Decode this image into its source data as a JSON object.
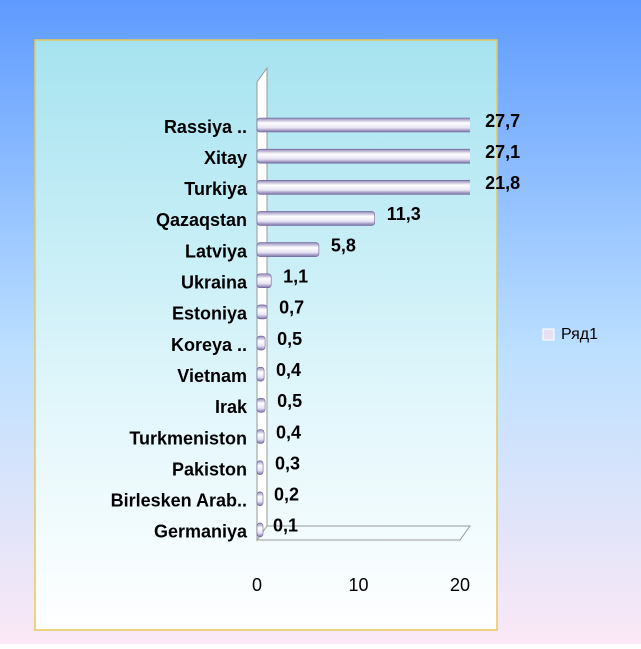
{
  "chart_data": {
    "type": "bar",
    "orientation": "horizontal",
    "categories": [
      "Rassiya ..",
      "Xitay",
      "Turkiya",
      "Qazaqstan",
      "Latviya",
      "Ukraina",
      "Estoniya",
      "Koreya ..",
      "Vietnam",
      "Irak",
      "Turkmeniston",
      "Pakiston",
      "Birlesken Arab..",
      "Germaniya"
    ],
    "series": [
      {
        "name": "Ряд1",
        "color": "#e6e0f0",
        "values": [
          27.7,
          27.1,
          21.8,
          11.3,
          5.8,
          1.1,
          0.7,
          0.5,
          0.4,
          0.5,
          0.4,
          0.3,
          0.2,
          0.1
        ],
        "value_labels": [
          "27,7",
          "27,1",
          "21,8",
          "11,3",
          "5,8",
          "1,1",
          "0,7",
          "0,5",
          "0,4",
          "0,5",
          "0,4",
          "0,3",
          "0,2",
          "0,1"
        ]
      }
    ],
    "xlim": [
      0,
      21
    ],
    "xticks": [
      0,
      10,
      20
    ],
    "legend": "right"
  }
}
